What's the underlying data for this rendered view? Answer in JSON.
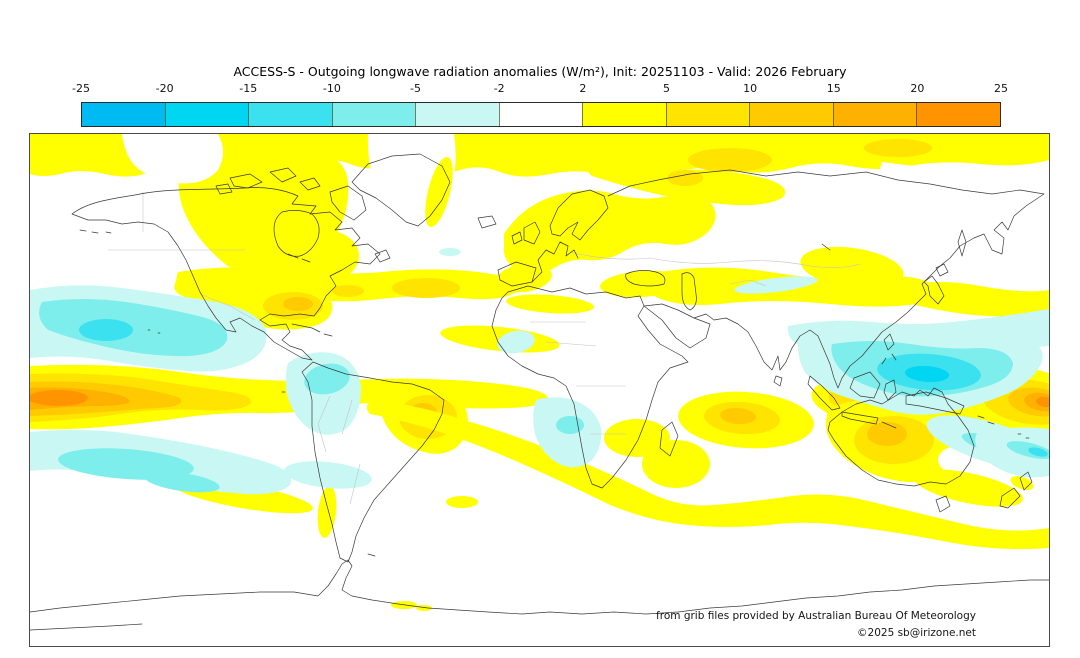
{
  "title": "ACCESS-S - Outgoing longwave radiation anomalies (W/m²), Init: 20251103 - Valid: 2026 February",
  "colorbar": {
    "units": "W/m²",
    "tick_labels": [
      "-25",
      "-20",
      "-15",
      "-10",
      "-5",
      "-2",
      "2",
      "5",
      "10",
      "15",
      "20",
      "25"
    ],
    "segments": [
      {
        "label": "-25 to -20",
        "color": "#00baf2"
      },
      {
        "label": "-20 to -15",
        "color": "#00d5f2"
      },
      {
        "label": "-15 to -10",
        "color": "#3ce1f0"
      },
      {
        "label": "-10 to -5",
        "color": "#7deeec"
      },
      {
        "label": "-5 to -2",
        "color": "#c9f8f4"
      },
      {
        "label": "-2 to 2",
        "color": "#ffffff"
      },
      {
        "label": "2 to 5",
        "color": "#ffff00"
      },
      {
        "label": "5 to 10",
        "color": "#ffe400"
      },
      {
        "label": "10 to 15",
        "color": "#ffcb00"
      },
      {
        "label": "15 to 20",
        "color": "#ffb100"
      },
      {
        "label": "20 to 25",
        "color": "#ff9400"
      }
    ]
  },
  "map": {
    "credit_line1": "from grib files provided by Australian Bureau Of Meteorology",
    "credit_line2": "©2025 sb@irizone.net"
  },
  "chart_data": {
    "type": "map",
    "title": "ACCESS-S - Outgoing longwave radiation anomalies (W/m²), Init: 20251103 - Valid: 2026 February",
    "model": "ACCESS-S",
    "variable": "Outgoing longwave radiation anomaly",
    "units": "W/m²",
    "init": "20251103",
    "valid": "2026 February",
    "projection": "equirectangular world map",
    "scale_breakpoints": [
      -25,
      -20,
      -15,
      -10,
      -5,
      -2,
      2,
      5,
      10,
      15,
      20,
      25
    ],
    "palette": {
      "m25_20": "#00baf2",
      "m20_15": "#00d5f2",
      "m15_10": "#3ce1f0",
      "m10_5": "#7deeec",
      "m5_2": "#c9f8f4",
      "neutral": "#ffffff",
      "p2_5": "#ffff00",
      "p5_10": "#ffe400",
      "p10_15": "#ffcb00",
      "p15_20": "#ffb100",
      "p20_25": "#ff9400"
    },
    "coast_color": "#3a3a3a",
    "border_color": "#c4c4c4",
    "notable_anomalies": [
      {
        "region": "Equatorial west-central Pacific near dateline",
        "anomaly": "+20 to +25"
      },
      {
        "region": "Maritime Continent / Philippine Sea",
        "anomaly": "-15 to -20"
      },
      {
        "region": "North-central Pacific",
        "anomaly": "-10 to -15"
      },
      {
        "region": "Northeast Brazil and adjacent Atlantic",
        "anomaly": "+10 to +15"
      },
      {
        "region": "Central Indian Ocean",
        "anomaly": "+10 to +15"
      },
      {
        "region": "Interior Australia",
        "anomaly": "+10 to +15"
      },
      {
        "region": "Gulf of Mexico",
        "anomaly": "+10 to +15"
      },
      {
        "region": "Arctic / high northern latitudes band",
        "anomaly": "+2 to +10"
      },
      {
        "region": "Northwest South America",
        "anomaly": "-5 to -10"
      },
      {
        "region": "South Pacific subtropics",
        "anomaly": "-5 to -10"
      },
      {
        "region": "Gulf of Guinea",
        "anomaly": "-5 to -10"
      },
      {
        "region": "Subtropical South Atlantic to south Indian Ocean band",
        "anomaly": "+2 to +5"
      }
    ]
  }
}
